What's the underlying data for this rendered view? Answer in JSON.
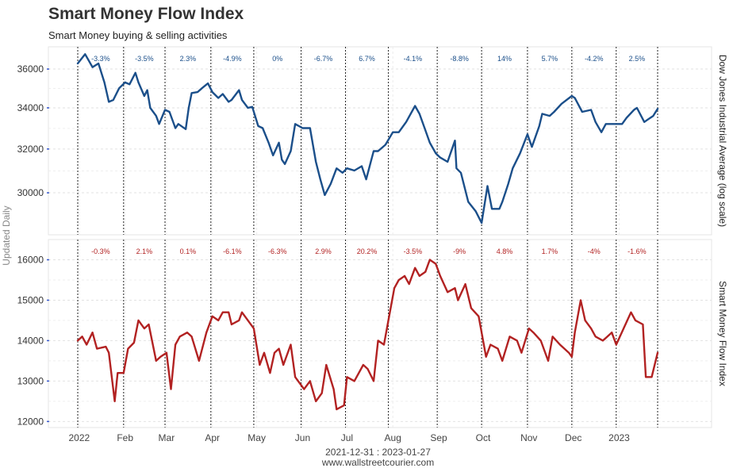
{
  "header": {
    "title": "Smart Money Flow Index",
    "subtitle": "Smart Money buying & selling activities"
  },
  "footer": {
    "range": "2021-12-31 : 2023-01-27",
    "site": "www.wallstreetcourier.com"
  },
  "chart_data": [
    {
      "type": "line",
      "ylabel": "Dow Jones Industrial Average (log scale)",
      "ylog": true,
      "ylim": [
        28200,
        37200
      ],
      "yticks": [
        30000,
        32000,
        34000,
        36000
      ],
      "ytick_labels": [
        "30000",
        "32000",
        "34000",
        "36000"
      ],
      "grid": true,
      "color": "#1b4f8a",
      "label_color": "#1b4f8a",
      "monthly_changes": [
        "-3.3%",
        "-3.5%",
        "2.3%",
        "-4.9%",
        "0%",
        "-6.7%",
        "6.7%",
        "-4.1%",
        "-8.8%",
        "14%",
        "5.7%",
        "-4.2%",
        "2.5%"
      ],
      "series": [
        {
          "x": [
            "2021-12-31",
            "2022-01-05",
            "2022-01-10",
            "2022-01-14",
            "2022-01-18",
            "2022-01-21",
            "2022-01-24",
            "2022-01-28",
            "2022-02-01",
            "2022-02-04",
            "2022-02-08",
            "2022-02-10",
            "2022-02-14",
            "2022-02-16",
            "2022-02-18",
            "2022-02-22",
            "2022-02-24",
            "2022-02-28",
            "2022-03-03",
            "2022-03-07",
            "2022-03-09",
            "2022-03-14",
            "2022-03-16",
            "2022-03-18",
            "2022-03-22",
            "2022-03-25",
            "2022-03-29",
            "2022-04-01",
            "2022-04-05",
            "2022-04-08",
            "2022-04-12",
            "2022-04-14",
            "2022-04-19",
            "2022-04-21",
            "2022-04-25",
            "2022-04-28",
            "2022-05-02",
            "2022-05-05",
            "2022-05-09",
            "2022-05-12",
            "2022-05-16",
            "2022-05-18",
            "2022-05-20",
            "2022-05-24",
            "2022-05-27",
            "2022-06-01",
            "2022-06-06",
            "2022-06-10",
            "2022-06-13",
            "2022-06-16",
            "2022-06-20",
            "2022-06-24",
            "2022-06-28",
            "2022-07-01",
            "2022-07-06",
            "2022-07-11",
            "2022-07-14",
            "2022-07-19",
            "2022-07-22",
            "2022-07-27",
            "2022-08-01",
            "2022-08-05",
            "2022-08-10",
            "2022-08-16",
            "2022-08-19",
            "2022-08-23",
            "2022-08-26",
            "2022-08-30",
            "2022-09-02",
            "2022-09-07",
            "2022-09-12",
            "2022-09-13",
            "2022-09-16",
            "2022-09-21",
            "2022-09-26",
            "2022-09-30",
            "2022-10-04",
            "2022-10-07",
            "2022-10-12",
            "2022-10-14",
            "2022-10-18",
            "2022-10-21",
            "2022-10-26",
            "2022-10-31",
            "2022-11-03",
            "2022-11-08",
            "2022-11-10",
            "2022-11-15",
            "2022-11-18",
            "2022-11-23",
            "2022-11-30",
            "2022-12-02",
            "2022-12-07",
            "2022-12-13",
            "2022-12-16",
            "2022-12-20",
            "2022-12-23",
            "2022-12-28",
            "2023-01-03",
            "2023-01-06",
            "2023-01-11",
            "2023-01-13",
            "2023-01-18",
            "2023-01-20",
            "2023-01-24",
            "2023-01-27"
          ],
          "values": [
            36300,
            36800,
            36100,
            36300,
            35300,
            34300,
            34400,
            35000,
            35300,
            35200,
            35800,
            35300,
            34600,
            34900,
            34000,
            33600,
            33200,
            33900,
            33800,
            33000,
            33200,
            32950,
            34000,
            34750,
            34800,
            35000,
            35250,
            34800,
            34500,
            34700,
            34300,
            34400,
            34900,
            34400,
            34000,
            34050,
            33100,
            33000,
            32300,
            31700,
            32300,
            31500,
            31300,
            31900,
            33200,
            33000,
            33000,
            31400,
            30600,
            29900,
            30400,
            31100,
            30900,
            31100,
            31000,
            31200,
            30600,
            31900,
            31900,
            32200,
            32800,
            32800,
            33300,
            34100,
            33700,
            32900,
            32300,
            31800,
            31600,
            31400,
            32400,
            31100,
            30900,
            29600,
            29200,
            28700,
            30300,
            29300,
            29300,
            29600,
            30400,
            31100,
            31800,
            32700,
            32100,
            33100,
            33700,
            33600,
            33800,
            34200,
            34600,
            34500,
            33800,
            33900,
            33300,
            32800,
            33200,
            33200,
            33200,
            33500,
            33900,
            34000,
            33300,
            33400,
            33600,
            33950
          ]
        }
      ]
    },
    {
      "type": "line",
      "ylabel": "Smart Money Flow Index",
      "ylim": [
        11850,
        16500
      ],
      "yticks": [
        12000,
        13000,
        14000,
        15000,
        16000
      ],
      "ytick_labels": [
        "12000",
        "13000",
        "14000",
        "15000",
        "16000"
      ],
      "grid": true,
      "color": "#b22222",
      "label_color": "#b22222",
      "monthly_changes": [
        "-0.3%",
        "2.1%",
        "0.1%",
        "-6.1%",
        "-6.3%",
        "2.9%",
        "20.2%",
        "-3.5%",
        "-9%",
        "4.8%",
        "1.7%",
        "-4%",
        "-1.6%"
      ],
      "series": [
        {
          "x": [
            "2021-12-31",
            "2022-01-03",
            "2022-01-06",
            "2022-01-10",
            "2022-01-13",
            "2022-01-19",
            "2022-01-21",
            "2022-01-25",
            "2022-01-27",
            "2022-01-31",
            "2022-02-03",
            "2022-02-07",
            "2022-02-10",
            "2022-02-14",
            "2022-02-17",
            "2022-02-22",
            "2022-02-25",
            "2022-03-01",
            "2022-03-04",
            "2022-03-07",
            "2022-03-10",
            "2022-03-15",
            "2022-03-18",
            "2022-03-23",
            "2022-03-28",
            "2022-04-01",
            "2022-04-05",
            "2022-04-08",
            "2022-04-12",
            "2022-04-14",
            "2022-04-19",
            "2022-04-21",
            "2022-04-25",
            "2022-04-29",
            "2022-05-03",
            "2022-05-06",
            "2022-05-10",
            "2022-05-13",
            "2022-05-16",
            "2022-05-19",
            "2022-05-24",
            "2022-05-27",
            "2022-06-02",
            "2022-06-06",
            "2022-06-10",
            "2022-06-14",
            "2022-06-17",
            "2022-06-22",
            "2022-06-24",
            "2022-06-29",
            "2022-07-01",
            "2022-07-06",
            "2022-07-12",
            "2022-07-15",
            "2022-07-19",
            "2022-07-22",
            "2022-07-26",
            "2022-07-29",
            "2022-08-02",
            "2022-08-05",
            "2022-08-09",
            "2022-08-12",
            "2022-08-16",
            "2022-08-19",
            "2022-08-23",
            "2022-08-26",
            "2022-08-30",
            "2022-09-02",
            "2022-09-07",
            "2022-09-12",
            "2022-09-14",
            "2022-09-19",
            "2022-09-23",
            "2022-09-28",
            "2022-10-03",
            "2022-10-06",
            "2022-10-11",
            "2022-10-14",
            "2022-10-19",
            "2022-10-24",
            "2022-10-27",
            "2022-11-01",
            "2022-11-04",
            "2022-11-09",
            "2022-11-14",
            "2022-11-17",
            "2022-11-22",
            "2022-11-28",
            "2022-11-30",
            "2022-12-02",
            "2022-12-06",
            "2022-12-09",
            "2022-12-13",
            "2022-12-16",
            "2022-12-21",
            "2022-12-27",
            "2022-12-30",
            "2023-01-04",
            "2023-01-09",
            "2023-01-12",
            "2023-01-17",
            "2023-01-19",
            "2023-01-23",
            "2023-01-27"
          ],
          "values": [
            14000,
            14100,
            13900,
            14200,
            13800,
            13850,
            13700,
            12500,
            13200,
            13200,
            13800,
            13950,
            14500,
            14300,
            14400,
            13500,
            13600,
            13700,
            12800,
            13900,
            14100,
            14200,
            14100,
            13500,
            14200,
            14600,
            14500,
            14700,
            14700,
            14400,
            14500,
            14700,
            14500,
            14300,
            13400,
            13700,
            13200,
            13700,
            13800,
            13400,
            13900,
            13100,
            12800,
            13000,
            12500,
            12700,
            13400,
            12800,
            12300,
            12400,
            13100,
            13000,
            13400,
            13300,
            13000,
            14000,
            13900,
            14500,
            15300,
            15500,
            15600,
            15400,
            15800,
            15600,
            15700,
            16000,
            15900,
            15600,
            15200,
            15300,
            15000,
            15400,
            14800,
            14600,
            13600,
            13900,
            13800,
            13500,
            14100,
            14000,
            13700,
            14300,
            14200,
            14000,
            13500,
            14100,
            13900,
            13700,
            13600,
            14200,
            15000,
            14500,
            14300,
            14100,
            14000,
            14200,
            13900,
            14300,
            14700,
            14500,
            14400,
            13100,
            13100,
            13700
          ]
        }
      ]
    }
  ],
  "x_axis": {
    "label": "Updated Daily",
    "start": "2021-12-31",
    "end": "2023-01-27",
    "ticks": [
      {
        "date": "2022-01-01",
        "label": "2022"
      },
      {
        "date": "2022-02-01",
        "label": "Feb"
      },
      {
        "date": "2022-03-01",
        "label": "Mar"
      },
      {
        "date": "2022-04-01",
        "label": "Apr"
      },
      {
        "date": "2022-05-01",
        "label": "May"
      },
      {
        "date": "2022-06-01",
        "label": "Jun"
      },
      {
        "date": "2022-07-01",
        "label": "Jul"
      },
      {
        "date": "2022-08-01",
        "label": "Aug"
      },
      {
        "date": "2022-09-01",
        "label": "Sep"
      },
      {
        "date": "2022-10-01",
        "label": "Oct"
      },
      {
        "date": "2022-11-01",
        "label": "Nov"
      },
      {
        "date": "2022-12-01",
        "label": "Dec"
      },
      {
        "date": "2023-01-01",
        "label": "2023"
      }
    ],
    "month_separators": [
      "2021-12-31",
      "2022-01-31",
      "2022-02-28",
      "2022-03-31",
      "2022-04-29",
      "2022-05-31",
      "2022-06-30",
      "2022-07-29",
      "2022-08-31",
      "2022-09-30",
      "2022-10-31",
      "2022-11-30",
      "2022-12-30",
      "2023-01-27"
    ]
  }
}
